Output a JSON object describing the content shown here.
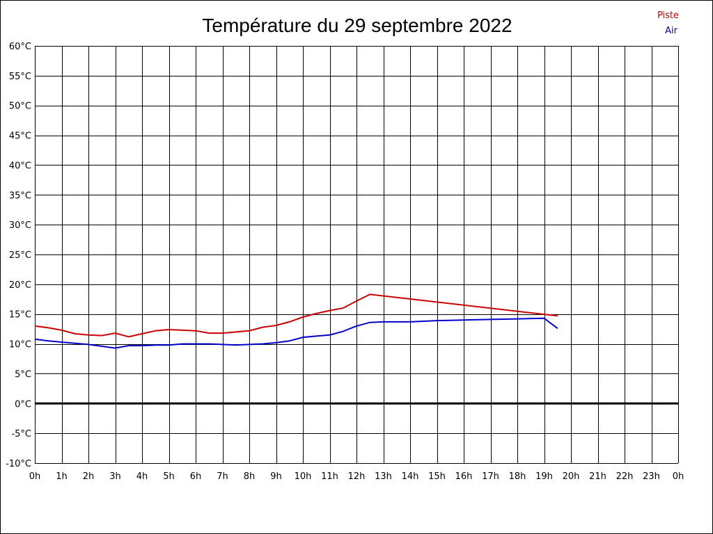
{
  "chart_data": {
    "type": "line",
    "title": "Température du 29 septembre 2022",
    "xlabel": "",
    "ylabel": "",
    "x_tick_labels": [
      "0h",
      "1h",
      "2h",
      "3h",
      "4h",
      "5h",
      "6h",
      "7h",
      "8h",
      "9h",
      "10h",
      "11h",
      "12h",
      "13h",
      "14h",
      "15h",
      "16h",
      "17h",
      "18h",
      "19h",
      "20h",
      "21h",
      "22h",
      "23h",
      "0h"
    ],
    "y_tick_labels": [
      "60°C",
      "55°C",
      "50°C",
      "45°C",
      "40°C",
      "35°C",
      "30°C",
      "25°C",
      "20°C",
      "15°C",
      "10°C",
      "5°C",
      "0°C",
      "-5°C",
      "-10°C"
    ],
    "xlim": [
      0,
      24
    ],
    "ylim": [
      -10,
      60
    ],
    "grid": true,
    "zero_line": true,
    "legend_position": "top-right",
    "series": [
      {
        "name": "Piste",
        "color": "#cc0000",
        "x": [
          0,
          0.5,
          1,
          1.5,
          2,
          2.5,
          3,
          3.5,
          4,
          4.5,
          5,
          5.5,
          6,
          6.5,
          7,
          7.5,
          8,
          8.5,
          9,
          9.5,
          10,
          10.5,
          11,
          11.5,
          12,
          12.5,
          19.5
        ],
        "values": [
          13.0,
          12.7,
          12.3,
          11.7,
          11.5,
          11.4,
          11.8,
          11.2,
          11.7,
          12.2,
          12.4,
          12.3,
          12.2,
          11.8,
          11.8,
          12.0,
          12.2,
          12.8,
          13.1,
          13.7,
          14.5,
          15.1,
          15.6,
          16.0,
          17.2,
          18.3,
          14.7
        ]
      },
      {
        "name": "Air",
        "color": "#0000cc",
        "x": [
          0,
          0.5,
          1,
          1.5,
          2,
          2.5,
          3,
          3.5,
          4,
          4.5,
          5,
          5.5,
          6,
          6.5,
          7,
          7.5,
          8,
          8.5,
          9,
          9.5,
          10,
          10.5,
          11,
          11.5,
          12,
          12.5,
          13,
          14,
          15,
          16,
          17,
          18,
          19,
          19.5
        ],
        "values": [
          10.8,
          10.5,
          10.3,
          10.1,
          9.9,
          9.6,
          9.3,
          9.7,
          9.7,
          9.8,
          9.8,
          10.0,
          10.0,
          10.0,
          9.9,
          9.8,
          9.9,
          10.0,
          10.2,
          10.5,
          11.1,
          11.3,
          11.5,
          12.1,
          13.0,
          13.6,
          13.7,
          13.7,
          13.9,
          14.0,
          14.1,
          14.2,
          14.3,
          12.6
        ]
      }
    ]
  }
}
